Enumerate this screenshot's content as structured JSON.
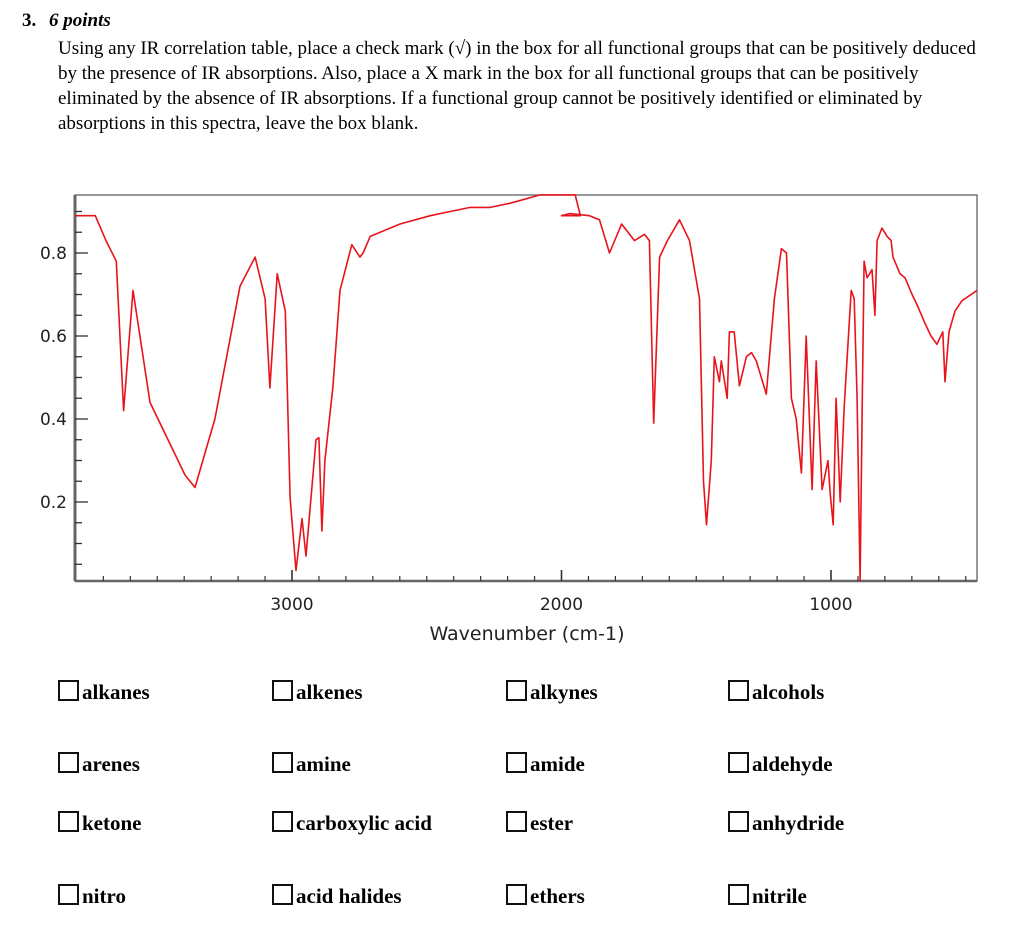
{
  "question": {
    "number": "3.",
    "points": "6 points",
    "text": "Using any IR correlation table, place a check mark (√) in the box for all functional groups that can be positively deduced by the presence of IR absorptions.  Also, place a X mark in the box for all functional groups that can be positively eliminated by the absence of IR absorptions.  If a functional group cannot be positively identified or eliminated by absorptions in this spectra, leave the box blank."
  },
  "chart_data": {
    "type": "line",
    "title": "",
    "xlabel": "Wavenumber (cm-1)",
    "ylabel": "",
    "x_ticks": [
      "3000",
      "2000",
      "1000"
    ],
    "y_ticks": [
      "0.2",
      "0.4",
      "0.6",
      "0.8"
    ],
    "xlim": [
      3805,
      458
    ],
    "ylim": [
      0.01,
      0.94
    ],
    "x_reversed": true,
    "grid": false,
    "legend": null,
    "line_color": "#e8141b",
    "series": [
      {
        "name": "IR spectrum",
        "x": [
          3805,
          3730,
          3690,
          3652,
          3625,
          3590,
          3527,
          3397,
          3360,
          3286,
          3193,
          3137,
          3100,
          3082,
          3055,
          3025,
          3007,
          2985,
          2963,
          2948,
          2911,
          2900,
          2889,
          2878,
          2848,
          2822,
          2778,
          2748,
          2736,
          2710,
          2599,
          2487,
          2413,
          2339,
          2265,
          2190,
          2079,
          1949,
          1930,
          2000,
          1970,
          1896,
          1859,
          1822,
          1777,
          1729,
          1692,
          1674,
          1658,
          1636,
          1607,
          1562,
          1525,
          1488,
          1473,
          1462,
          1444,
          1433,
          1414,
          1407,
          1385,
          1377,
          1359,
          1340,
          1314,
          1295,
          1277,
          1240,
          1210,
          1184,
          1165,
          1147,
          1129,
          1110,
          1092,
          1070,
          1055,
          1033,
          1011,
          1003,
          992,
          981,
          966,
          951,
          940,
          925,
          914,
          903,
          892,
          884,
          877,
          866,
          848,
          837,
          829,
          811,
          792,
          777,
          770,
          744,
          725,
          699,
          677,
          651,
          629,
          607,
          585,
          577,
          562,
          540,
          514,
          458
        ],
        "values": [
          0.89,
          0.89,
          0.83,
          0.78,
          0.42,
          0.71,
          0.44,
          0.265,
          0.235,
          0.4,
          0.72,
          0.79,
          0.69,
          0.475,
          0.75,
          0.66,
          0.21,
          0.035,
          0.16,
          0.07,
          0.35,
          0.355,
          0.13,
          0.3,
          0.48,
          0.71,
          0.82,
          0.79,
          0.8,
          0.84,
          0.87,
          0.89,
          0.9,
          0.91,
          0.91,
          0.92,
          0.94,
          0.94,
          0.89,
          0.89,
          0.895,
          0.89,
          0.88,
          0.8,
          0.87,
          0.83,
          0.845,
          0.83,
          0.39,
          0.79,
          0.83,
          0.88,
          0.83,
          0.69,
          0.25,
          0.145,
          0.3,
          0.55,
          0.49,
          0.54,
          0.45,
          0.61,
          0.61,
          0.48,
          0.55,
          0.56,
          0.54,
          0.46,
          0.69,
          0.81,
          0.8,
          0.45,
          0.4,
          0.27,
          0.6,
          0.23,
          0.54,
          0.23,
          0.3,
          0.22,
          0.145,
          0.45,
          0.2,
          0.43,
          0.55,
          0.71,
          0.69,
          0.45,
          0.01,
          0.45,
          0.78,
          0.74,
          0.76,
          0.65,
          0.83,
          0.86,
          0.84,
          0.83,
          0.79,
          0.75,
          0.74,
          0.7,
          0.67,
          0.63,
          0.6,
          0.58,
          0.61,
          0.49,
          0.61,
          0.66,
          0.685,
          0.71
        ]
      }
    ]
  },
  "options": [
    {
      "label": "alkanes",
      "col": 0,
      "row": 0
    },
    {
      "label": "alkenes",
      "col": 1,
      "row": 0
    },
    {
      "label": "alkynes",
      "col": 2,
      "row": 0
    },
    {
      "label": "alcohols",
      "col": 3,
      "row": 0
    },
    {
      "label": "arenes",
      "col": 0,
      "row": 1
    },
    {
      "label": "amine",
      "col": 1,
      "row": 1
    },
    {
      "label": "amide",
      "col": 2,
      "row": 1
    },
    {
      "label": "aldehyde",
      "col": 3,
      "row": 1
    },
    {
      "label": "ketone",
      "col": 0,
      "row": 2
    },
    {
      "label": "carboxylic acid",
      "col": 1,
      "row": 2
    },
    {
      "label": "ester",
      "col": 2,
      "row": 2
    },
    {
      "label": "anhydride",
      "col": 3,
      "row": 2
    },
    {
      "label": "nitro",
      "col": 0,
      "row": 3
    },
    {
      "label": "acid halides",
      "col": 1,
      "row": 3
    },
    {
      "label": "ethers",
      "col": 2,
      "row": 3
    },
    {
      "label": "nitrile",
      "col": 3,
      "row": 3
    }
  ]
}
